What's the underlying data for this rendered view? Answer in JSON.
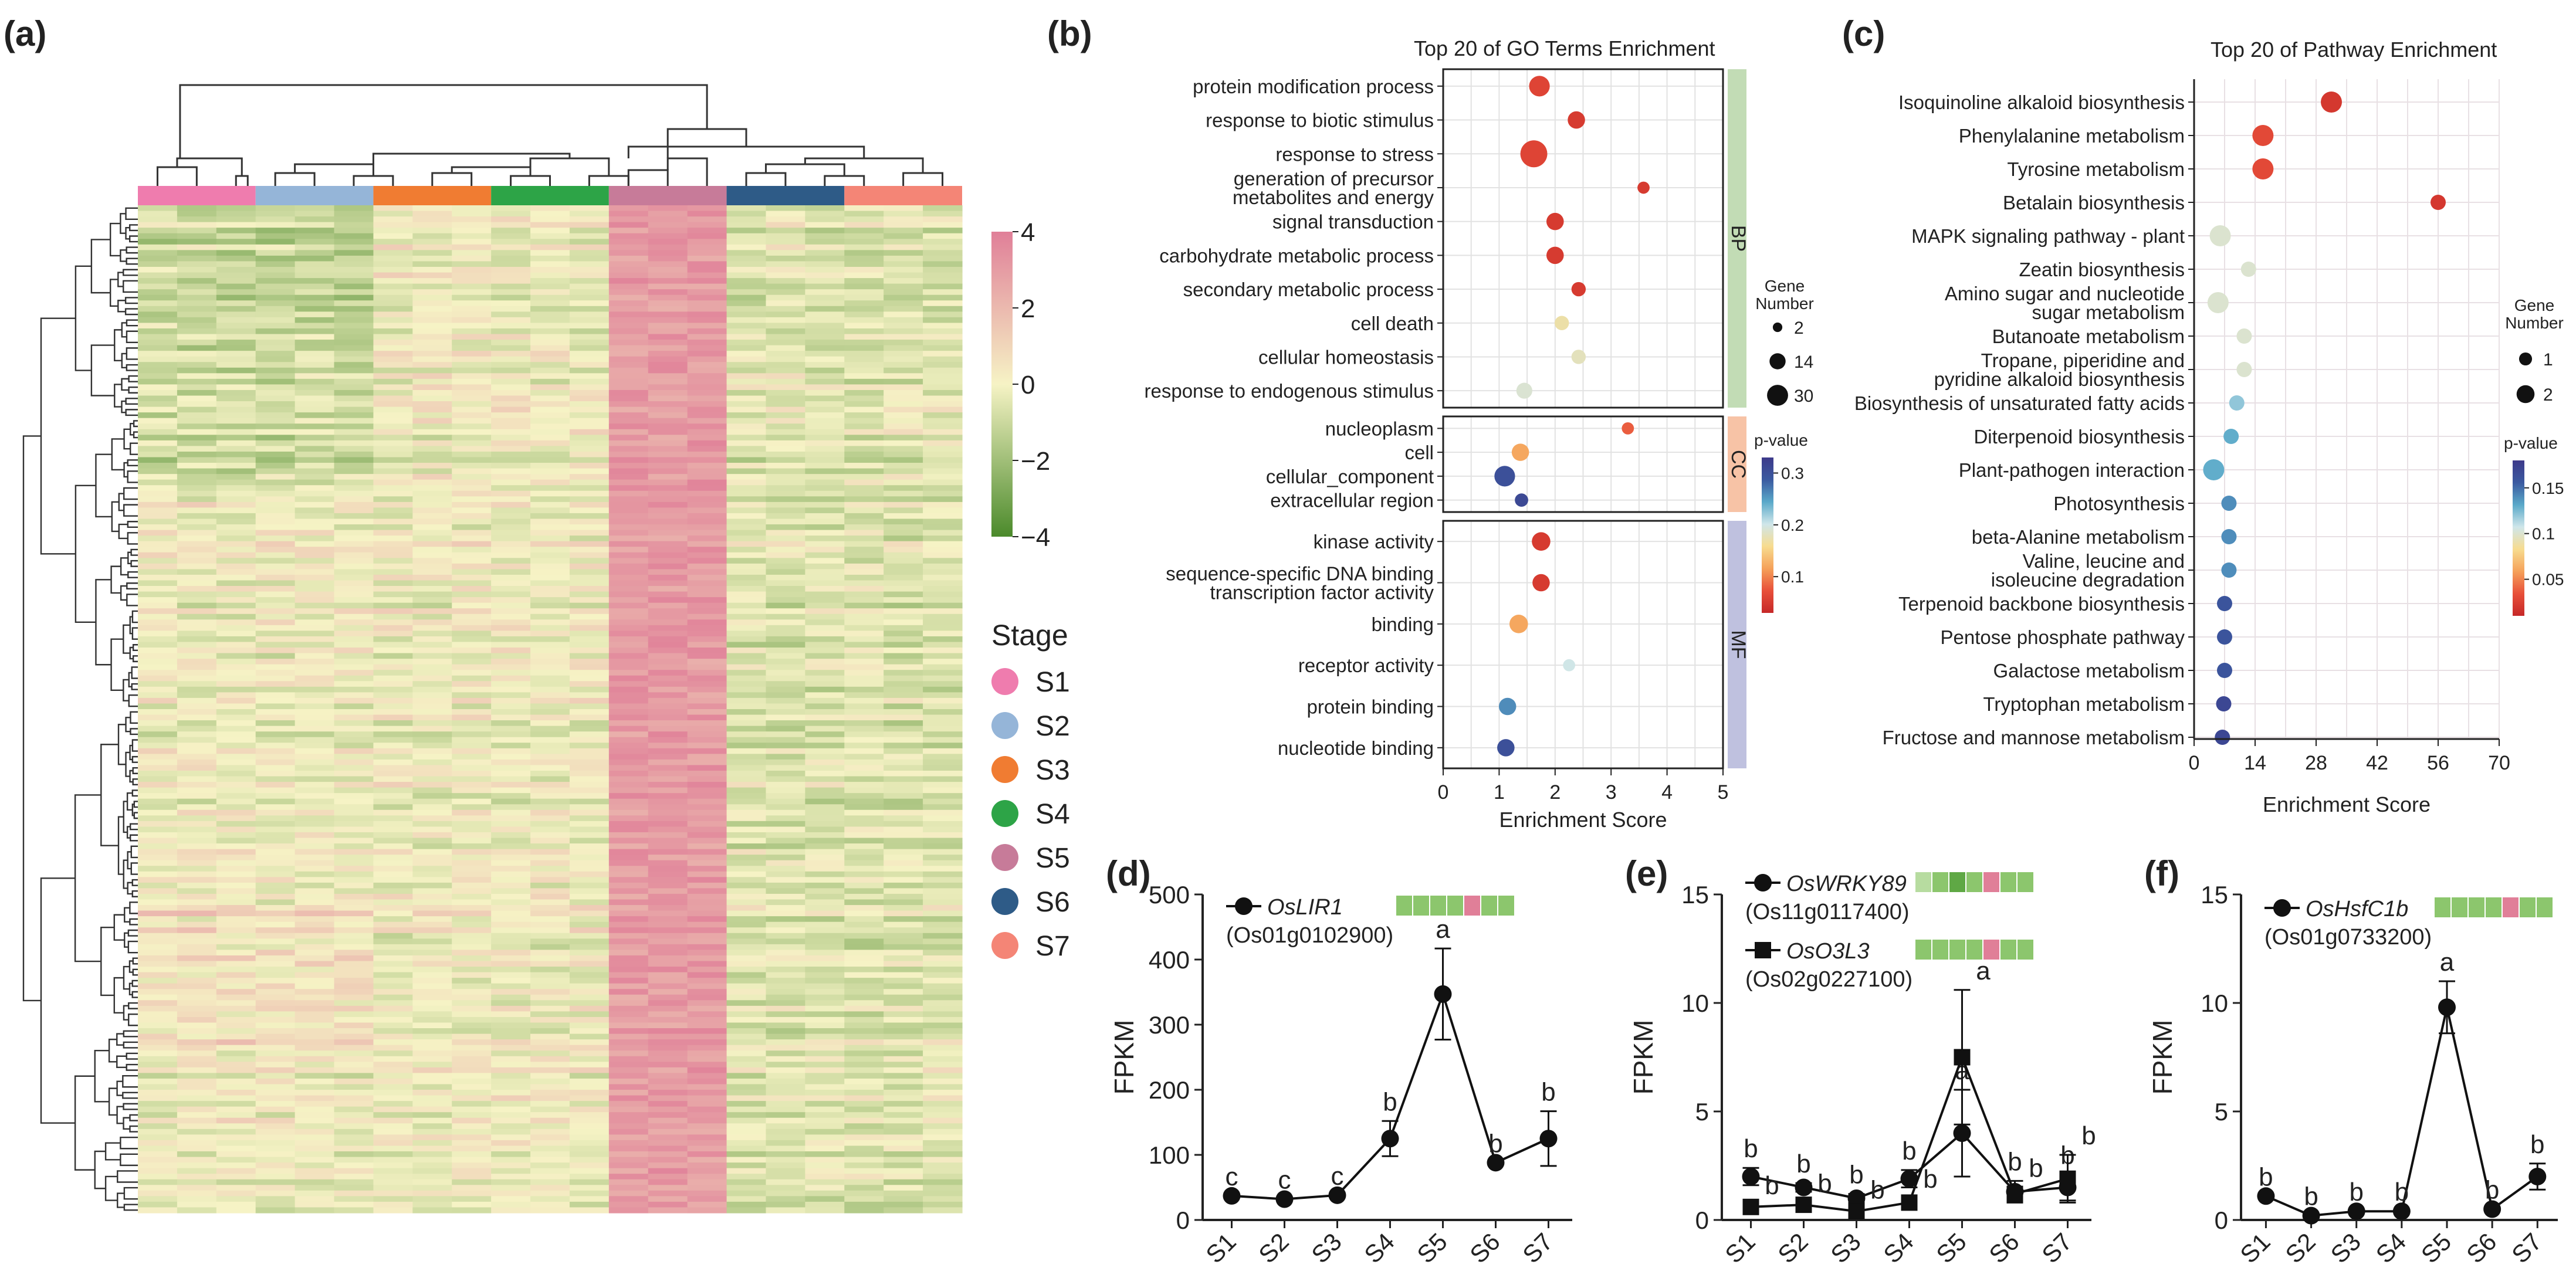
{
  "panel_labels": [
    "(a)",
    "(b)",
    "(c)",
    "(d)",
    "(e)",
    "(f)"
  ],
  "chart_data": [
    {
      "id": "a",
      "type": "heatmap",
      "title": "",
      "colorbar": {
        "ticks": [
          4,
          2,
          0,
          -2,
          -4
        ],
        "tick_labels": [
          "4",
          "2",
          "0",
          "−2",
          "−4"
        ],
        "min": -4,
        "max": 4,
        "colors": [
          "#4b8a2b",
          "#f6f3c5",
          "#e07f98"
        ]
      },
      "legend_title": "Stage",
      "stages": [
        {
          "label": "S1",
          "color": "#ef7cae"
        },
        {
          "label": "S2",
          "color": "#95b5d8"
        },
        {
          "label": "S3",
          "color": "#f07c32"
        },
        {
          "label": "S4",
          "color": "#2da447"
        },
        {
          "label": "S5",
          "color": "#c77b99"
        },
        {
          "label": "S6",
          "color": "#2e5b87"
        },
        {
          "label": "S7",
          "color": "#f48576"
        }
      ],
      "n_rows": 180,
      "n_cols": 21
    },
    {
      "id": "b",
      "type": "scatter",
      "title": "Top 20 of  GO Terms Enrichment",
      "xlabel": "Enrichment Score",
      "xlim": [
        0,
        5
      ],
      "xticks": [
        0,
        1,
        2,
        3,
        4,
        5
      ],
      "groups": [
        {
          "name": "BP",
          "color": "#c2dcb5",
          "terms": [
            {
              "label": "protein modification process",
              "x": 1.72,
              "n": 14,
              "p": 0.06
            },
            {
              "label": "response to biotic stimulus",
              "x": 2.38,
              "n": 8,
              "p": 0.05
            },
            {
              "label": "response to stress",
              "x": 1.62,
              "n": 30,
              "p": 0.06
            },
            {
              "label": "generation of precursor|metabolites and energy",
              "x": 3.58,
              "n": 2,
              "p": 0.05
            },
            {
              "label": "signal transduction",
              "x": 2.0,
              "n": 8,
              "p": 0.05
            },
            {
              "label": "carbohydrate metabolic process",
              "x": 2.0,
              "n": 8,
              "p": 0.05
            },
            {
              "label": "secondary metabolic process",
              "x": 2.42,
              "n": 4,
              "p": 0.05
            },
            {
              "label": "cell death",
              "x": 2.12,
              "n": 4,
              "p": 0.17
            },
            {
              "label": "cellular homeostasis",
              "x": 2.42,
              "n": 4,
              "p": 0.18
            },
            {
              "label": "response to endogenous stimulus",
              "x": 1.45,
              "n": 6,
              "p": 0.19
            }
          ]
        },
        {
          "name": "CC",
          "color": "#f7c3a6",
          "terms": [
            {
              "label": "nucleoplasm",
              "x": 3.3,
              "n": 2,
              "p": 0.08
            },
            {
              "label": "cell",
              "x": 1.38,
              "n": 8,
              "p": 0.12
            },
            {
              "label": "cellular_component",
              "x": 1.1,
              "n": 14,
              "p": 0.3
            },
            {
              "label": "extracellular region",
              "x": 1.4,
              "n": 3,
              "p": 0.31
            }
          ]
        },
        {
          "name": "MF",
          "color": "#bfc1df",
          "terms": [
            {
              "label": "kinase activity",
              "x": 1.75,
              "n": 10,
              "p": 0.05
            },
            {
              "label": "sequence-specific DNA binding|transcription factor activity",
              "x": 1.75,
              "n": 8,
              "p": 0.05
            },
            {
              "label": "binding",
              "x": 1.35,
              "n": 10,
              "p": 0.12
            },
            {
              "label": "receptor activity",
              "x": 2.25,
              "n": 2,
              "p": 0.2
            },
            {
              "label": "protein binding",
              "x": 1.15,
              "n": 8,
              "p": 0.26
            },
            {
              "label": "nucleotide binding",
              "x": 1.12,
              "n": 8,
              "p": 0.3
            }
          ]
        }
      ],
      "size_legend": {
        "title": "Gene|Number",
        "values": [
          2,
          14,
          30
        ],
        "labels": [
          "2",
          "14",
          "30"
        ]
      },
      "color_legend": {
        "title": "p-value",
        "min": 0.03,
        "max": 0.33,
        "ticks": [
          0.3,
          0.2,
          0.1
        ],
        "tick_labels": [
          "0.3",
          "0.2",
          "0.1"
        ]
      }
    },
    {
      "id": "c",
      "type": "scatter",
      "title": "Top 20 of Pathway Enrichment",
      "xlabel": "Enrichment Score",
      "xlim": [
        0,
        70
      ],
      "xticks": [
        0,
        14,
        28,
        42,
        56,
        70
      ],
      "terms": [
        {
          "label": "Isoquinoline alkaloid biosynthesis",
          "x": 31.5,
          "n": 2,
          "p": 0.02
        },
        {
          "label": "Phenylalanine metabolism",
          "x": 15.8,
          "n": 2,
          "p": 0.03
        },
        {
          "label": "Tyrosine metabolism",
          "x": 15.8,
          "n": 2,
          "p": 0.03
        },
        {
          "label": "Betalain biosynthesis",
          "x": 56.0,
          "n": 1,
          "p": 0.02
        },
        {
          "label": "MAPK signaling pathway - plant",
          "x": 6.0,
          "n": 2,
          "p": 0.1
        },
        {
          "label": "Zeatin biosynthesis",
          "x": 12.5,
          "n": 1,
          "p": 0.1
        },
        {
          "label": "Amino sugar and nucleotide|sugar metabolism",
          "x": 5.5,
          "n": 2,
          "p": 0.1
        },
        {
          "label": "Butanoate metabolism",
          "x": 11.5,
          "n": 1,
          "p": 0.1
        },
        {
          "label": "Tropane, piperidine and|pyridine alkaloid biosynthesis",
          "x": 11.5,
          "n": 1,
          "p": 0.1
        },
        {
          "label": "Biosynthesis of unsaturated fatty acids",
          "x": 9.8,
          "n": 1,
          "p": 0.12
        },
        {
          "label": "Diterpenoid biosynthesis",
          "x": 8.5,
          "n": 1,
          "p": 0.13
        },
        {
          "label": "Plant-pathogen interaction",
          "x": 4.5,
          "n": 2,
          "p": 0.13
        },
        {
          "label": "Photosynthesis",
          "x": 8.0,
          "n": 1,
          "p": 0.14
        },
        {
          "label": "beta-Alanine metabolism",
          "x": 8.0,
          "n": 1,
          "p": 0.14
        },
        {
          "label": "Valine, leucine and|isoleucine degradation",
          "x": 8.0,
          "n": 1,
          "p": 0.14
        },
        {
          "label": "Terpenoid backbone biosynthesis",
          "x": 7.0,
          "n": 1,
          "p": 0.16
        },
        {
          "label": "Pentose phosphate pathway",
          "x": 7.0,
          "n": 1,
          "p": 0.16
        },
        {
          "label": "Galactose metabolism",
          "x": 7.0,
          "n": 1,
          "p": 0.16
        },
        {
          "label": "Tryptophan metabolism",
          "x": 6.8,
          "n": 1,
          "p": 0.17
        },
        {
          "label": "Fructose and mannose metabolism",
          "x": 6.5,
          "n": 1,
          "p": 0.17
        }
      ],
      "size_legend": {
        "title": "Gene|Number",
        "values": [
          1,
          2
        ],
        "labels": [
          "1",
          "2"
        ]
      },
      "color_legend": {
        "title": "p-value",
        "min": 0.01,
        "max": 0.18,
        "ticks": [
          0.15,
          0.1,
          0.05
        ],
        "tick_labels": [
          "0.15",
          "0.1",
          "0.05"
        ]
      }
    },
    {
      "id": "d",
      "type": "line",
      "ylabel": "FPKM",
      "ylim": [
        0,
        500
      ],
      "yticks": [
        0,
        100,
        200,
        300,
        400,
        500
      ],
      "categories": [
        "S1",
        "S2",
        "S3",
        "S4",
        "S5",
        "S6",
        "S7"
      ],
      "series": [
        {
          "name": "OsLIR1",
          "gene_id": "(Os01g0102900)",
          "marker": "circle",
          "values": [
            37,
            32,
            38,
            125,
            347,
            88,
            125
          ],
          "errors": [
            0,
            0,
            0,
            27,
            70,
            0,
            42
          ],
          "letters": [
            "c",
            "c",
            "c",
            "b",
            "a",
            "b",
            "b"
          ],
          "letter_color": "#111111",
          "swatches": [
            "#8cc66d",
            "#8cc66d",
            "#8cc66d",
            "#8cc66d",
            "#e07f98",
            "#8cc66d",
            "#8cc66d"
          ]
        }
      ]
    },
    {
      "id": "e",
      "type": "line",
      "ylabel": "FPKM",
      "ylim": [
        0,
        15
      ],
      "yticks": [
        0,
        5,
        10,
        15
      ],
      "categories": [
        "S1",
        "S2",
        "S3",
        "S4",
        "S5",
        "S6",
        "S7"
      ],
      "series": [
        {
          "name": "OsWRKY89",
          "gene_id": "(Os11g0117400)",
          "marker": "circle",
          "values": [
            2.0,
            1.5,
            1.0,
            1.9,
            4.0,
            1.3,
            1.5
          ],
          "errors": [
            0.4,
            0.2,
            0.2,
            0.4,
            2.0,
            0.5,
            0.6
          ],
          "letters": [
            "b",
            "b",
            "b",
            "b",
            "a",
            "b",
            "b"
          ],
          "letter_color": "#d4342d",
          "swatches": [
            "#b7dca0",
            "#8cc66d",
            "#5fa845",
            "#8cc66d",
            "#e07f98",
            "#8cc66d",
            "#8cc66d"
          ]
        },
        {
          "name": "OsO3L3",
          "gene_id": "(Os02g0227100)",
          "marker": "square",
          "values": [
            0.6,
            0.7,
            0.4,
            0.8,
            7.5,
            1.2,
            1.9
          ],
          "errors": [
            0.1,
            0.1,
            0.1,
            0.2,
            3.1,
            0.3,
            1.1
          ],
          "letters": [
            "b",
            "b",
            "b",
            "b",
            "a",
            "b",
            "b"
          ],
          "letter_color": "#3873b8",
          "swatches": [
            "#8cc66d",
            "#8cc66d",
            "#8cc66d",
            "#8cc66d",
            "#e07f98",
            "#8cc66d",
            "#8cc66d"
          ]
        }
      ]
    },
    {
      "id": "f",
      "type": "line",
      "ylabel": "FPKM",
      "ylim": [
        0,
        15
      ],
      "yticks": [
        0,
        5,
        10,
        15
      ],
      "categories": [
        "S1",
        "S2",
        "S3",
        "S4",
        "S5",
        "S6",
        "S7"
      ],
      "series": [
        {
          "name": "OsHsfC1b",
          "gene_id": "(Os01g0733200)",
          "marker": "circle",
          "values": [
            1.1,
            0.2,
            0.4,
            0.4,
            9.8,
            0.5,
            2.0
          ],
          "errors": [
            0,
            0,
            0,
            0,
            1.2,
            0,
            0.6
          ],
          "letters": [
            "b",
            "b",
            "b",
            "b",
            "a",
            "b",
            "b"
          ],
          "letter_color": "#111111",
          "swatches": [
            "#8cc66d",
            "#8cc66d",
            "#8cc66d",
            "#8cc66d",
            "#e07f98",
            "#8cc66d",
            "#8cc66d"
          ]
        }
      ]
    }
  ]
}
